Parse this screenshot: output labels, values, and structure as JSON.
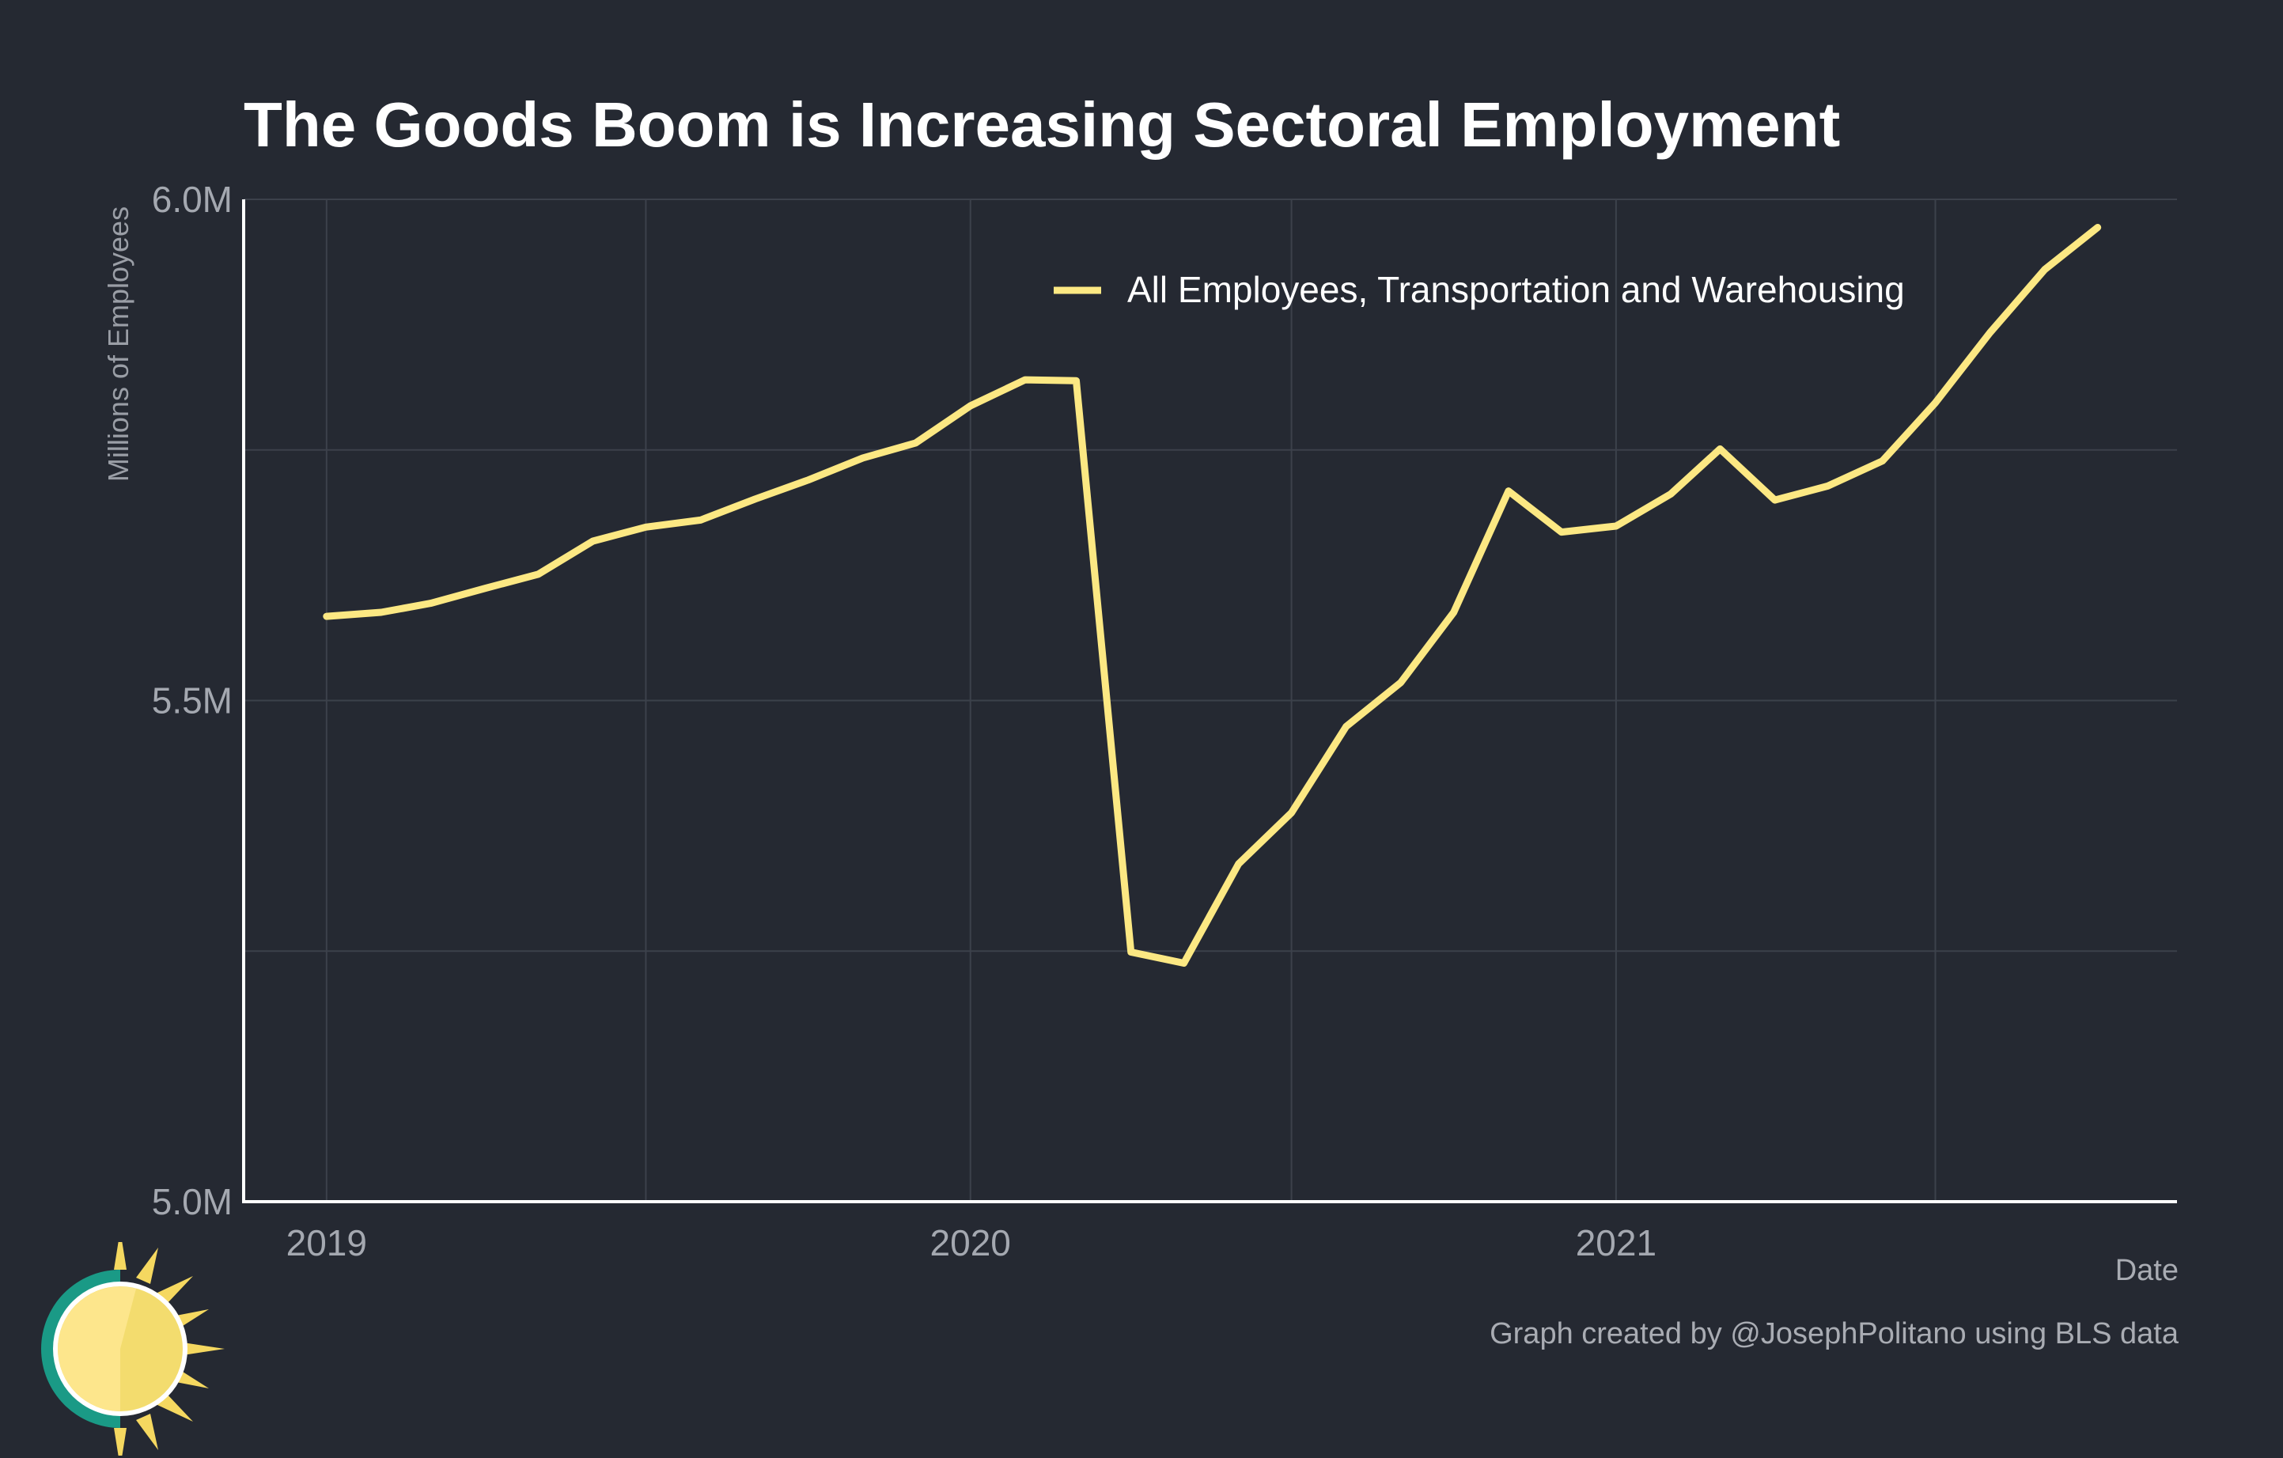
{
  "chart_data": {
    "type": "line",
    "title": "The Goods Boom is Increasing Sectoral Employment",
    "xlabel": "Date",
    "ylabel": "Millions of Employees",
    "caption": "Graph created by @JosephPolitano using BLS data",
    "ylim": [
      5.0,
      6.0
    ],
    "y_ticks": [
      5.0,
      5.5,
      6.0
    ],
    "y_tick_labels": [
      "5.0M",
      "5.5M",
      "6.0M"
    ],
    "xlim": [
      "2018-11-15",
      "2021-11-15"
    ],
    "x_ticks": [
      "2019",
      "2020",
      "2021"
    ],
    "grid": true,
    "legend_position": "top-right",
    "series": [
      {
        "name": "All Employees, Transportation and Warehousing",
        "color": "#fce883",
        "x": [
          "2019-01",
          "2019-02",
          "2019-03",
          "2019-04",
          "2019-05",
          "2019-06",
          "2019-07",
          "2019-08",
          "2019-09",
          "2019-10",
          "2019-11",
          "2019-12",
          "2020-01",
          "2020-02",
          "2020-03",
          "2020-04",
          "2020-05",
          "2020-06",
          "2020-07",
          "2020-08",
          "2020-09",
          "2020-10",
          "2020-11",
          "2020-12",
          "2021-01",
          "2021-02",
          "2021-03",
          "2021-04",
          "2021-05",
          "2021-06",
          "2021-07",
          "2021-08",
          "2021-09",
          "2021-10"
        ],
        "values": [
          5.584,
          5.588,
          5.597,
          5.612,
          5.626,
          5.659,
          5.673,
          5.68,
          5.701,
          5.72,
          5.742,
          5.757,
          5.794,
          5.82,
          5.819,
          5.249,
          5.238,
          5.337,
          5.388,
          5.474,
          5.518,
          5.588,
          5.709,
          5.668,
          5.674,
          5.706,
          5.751,
          5.7,
          5.714,
          5.739,
          5.797,
          5.867,
          5.93,
          5.972
        ]
      }
    ]
  }
}
